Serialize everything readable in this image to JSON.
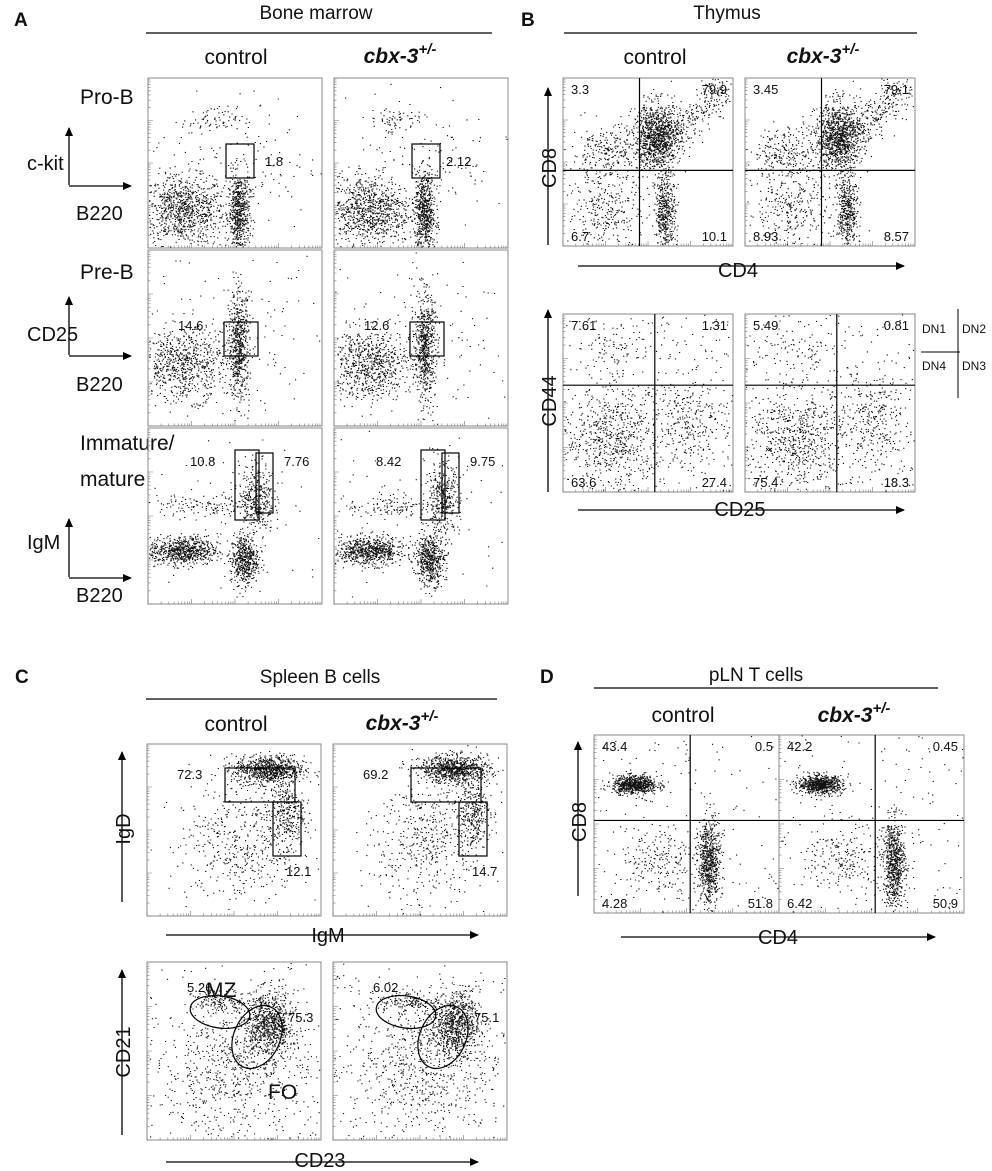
{
  "panels": {
    "A": {
      "letter": "A",
      "title": "Bone marrow",
      "columns": [
        "control",
        "cbx-3",
        "+/-"
      ],
      "rows": [
        {
          "population": "Pro-B",
          "y_axis": "c-kit",
          "x_axis": "B220"
        },
        {
          "population": "Pre-B",
          "y_axis": "CD25",
          "x_axis": "B220"
        },
        {
          "population_line1": "Immature/",
          "population_line2": "mature",
          "y_axis": "IgM",
          "x_axis": "B220"
        }
      ]
    },
    "B": {
      "letter": "B",
      "title": "Thymus",
      "columns": [
        "control",
        "cbx-3",
        "+/-"
      ],
      "rows": [
        {
          "y_axis": "CD8",
          "x_axis": "CD4"
        },
        {
          "y_axis": "CD44",
          "x_axis": "CD25"
        }
      ],
      "dn_legend": [
        "DN1",
        "DN2",
        "DN4",
        "DN3"
      ]
    },
    "C": {
      "letter": "C",
      "title": "Spleen B cells",
      "columns": [
        "control",
        "cbx-3",
        "+/-"
      ],
      "rows": [
        {
          "y_axis": "IgD",
          "x_axis": "IgM"
        },
        {
          "y_axis": "CD21",
          "x_axis": "CD23",
          "gate_mz": "MZ",
          "gate_fo": "FO"
        }
      ]
    },
    "D": {
      "letter": "D",
      "title": "pLN T cells",
      "columns": [
        "control",
        "cbx-3",
        "+/-"
      ],
      "rows": [
        {
          "y_axis": "CD8",
          "x_axis": "CD4"
        }
      ]
    }
  },
  "chart_data": [
    {
      "type": "scatter",
      "panel": "A",
      "row": "Pro-B",
      "sample": "control",
      "xlabel": "B220",
      "ylabel": "c-kit",
      "gate_percent": [
        1.8
      ]
    },
    {
      "type": "scatter",
      "panel": "A",
      "row": "Pro-B",
      "sample": "cbx-3+/-",
      "xlabel": "B220",
      "ylabel": "c-kit",
      "gate_percent": [
        2.12
      ]
    },
    {
      "type": "scatter",
      "panel": "A",
      "row": "Pre-B",
      "sample": "control",
      "xlabel": "B220",
      "ylabel": "CD25",
      "gate_percent": [
        14.6
      ]
    },
    {
      "type": "scatter",
      "panel": "A",
      "row": "Pre-B",
      "sample": "cbx-3+/-",
      "xlabel": "B220",
      "ylabel": "CD25",
      "gate_percent": [
        12.6
      ]
    },
    {
      "type": "scatter",
      "panel": "A",
      "row": "Immature/mature",
      "sample": "control",
      "xlabel": "B220",
      "ylabel": "IgM",
      "gate_percent": [
        10.8,
        7.76
      ]
    },
    {
      "type": "scatter",
      "panel": "A",
      "row": "Immature/mature",
      "sample": "cbx-3+/-",
      "xlabel": "B220",
      "ylabel": "IgM",
      "gate_percent": [
        8.42,
        9.75
      ]
    },
    {
      "type": "scatter",
      "panel": "B",
      "sample": "control",
      "xlabel": "CD4",
      "ylabel": "CD8",
      "quadrants": {
        "UL": 3.3,
        "UR": 79.9,
        "LL": 6.7,
        "LR": 10.1
      }
    },
    {
      "type": "scatter",
      "panel": "B",
      "sample": "cbx-3+/-",
      "xlabel": "CD4",
      "ylabel": "CD8",
      "quadrants": {
        "UL": 3.45,
        "UR": 79.1,
        "LL": 8.93,
        "LR": 8.57
      }
    },
    {
      "type": "scatter",
      "panel": "B",
      "sample": "control",
      "xlabel": "CD25",
      "ylabel": "CD44",
      "quadrants": {
        "UL": 7.61,
        "UR": 1.31,
        "LL": 63.6,
        "LR": 27.4
      }
    },
    {
      "type": "scatter",
      "panel": "B",
      "sample": "cbx-3+/-",
      "xlabel": "CD25",
      "ylabel": "CD44",
      "quadrants": {
        "UL": 5.49,
        "UR": 0.81,
        "LL": 75.4,
        "LR": 18.3
      }
    },
    {
      "type": "scatter",
      "panel": "C",
      "sample": "control",
      "xlabel": "IgM",
      "ylabel": "IgD",
      "gate_percent": [
        72.3,
        12.1
      ]
    },
    {
      "type": "scatter",
      "panel": "C",
      "sample": "cbx-3+/-",
      "xlabel": "IgM",
      "ylabel": "IgD",
      "gate_percent": [
        69.2,
        14.7
      ]
    },
    {
      "type": "scatter",
      "panel": "C",
      "sample": "control",
      "xlabel": "CD23",
      "ylabel": "CD21",
      "gate_percent": [
        5.26,
        75.3
      ]
    },
    {
      "type": "scatter",
      "panel": "C",
      "sample": "cbx-3+/-",
      "xlabel": "CD23",
      "ylabel": "CD21",
      "gate_percent": [
        6.02,
        75.1
      ]
    },
    {
      "type": "scatter",
      "panel": "D",
      "sample": "control",
      "xlabel": "CD4",
      "ylabel": "CD8",
      "quadrants": {
        "UL": 43.4,
        "UR": 0.5,
        "LL": 4.28,
        "LR": 51.8
      }
    },
    {
      "type": "scatter",
      "panel": "D",
      "sample": "cbx-3+/-",
      "xlabel": "CD4",
      "ylabel": "CD8",
      "quadrants": {
        "UL": 42.2,
        "UR": 0.45,
        "LL": 6.42,
        "LR": 50.9
      }
    }
  ]
}
